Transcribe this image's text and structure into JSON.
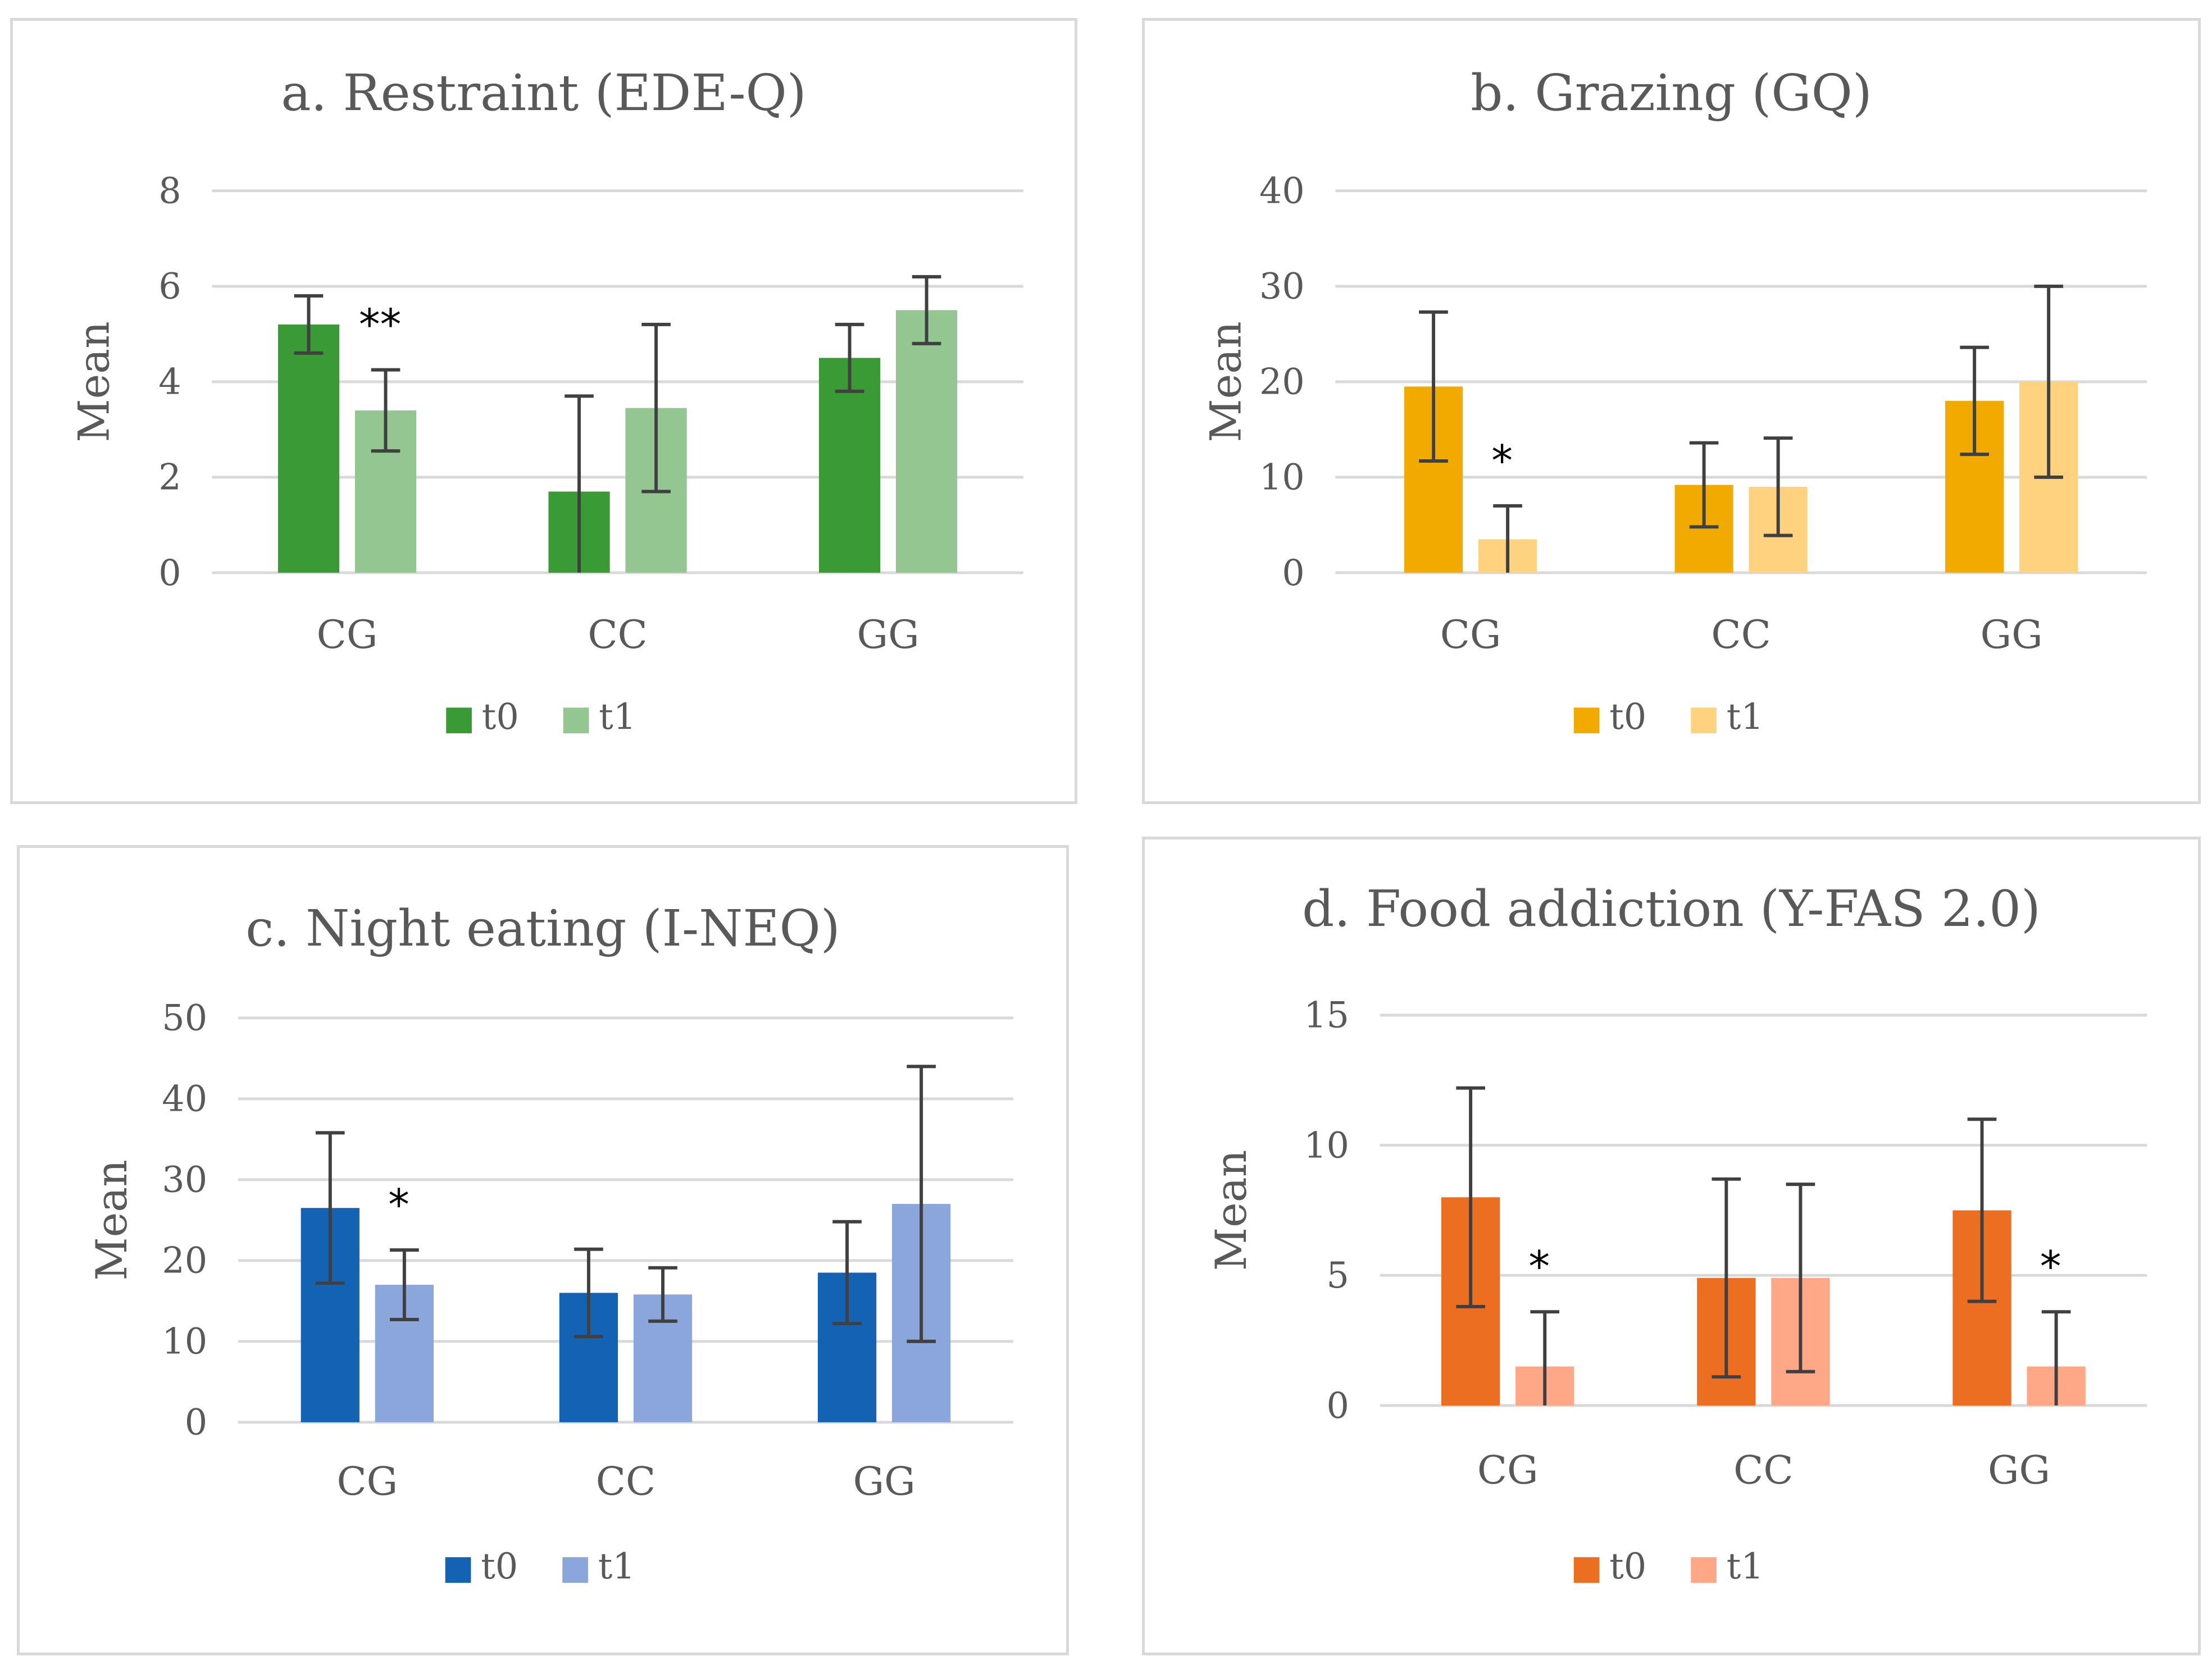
{
  "chart_data": [
    {
      "type": "bar",
      "title": "a. Restraint (EDE-Q)",
      "ylabel": "Mean",
      "xlabel": "",
      "ylim": [
        0,
        8
      ],
      "yticks": [
        0,
        2,
        4,
        6,
        8
      ],
      "grid": true,
      "legend_position": "bottom",
      "categories": [
        "CG",
        "CC",
        "GG"
      ],
      "series": [
        {
          "name": "t0",
          "color": "#3a9a35",
          "values": [
            5.2,
            1.7,
            4.5
          ],
          "error": [
            0.6,
            2.0,
            0.7
          ]
        },
        {
          "name": "t1",
          "color": "#93c690",
          "values": [
            3.4,
            3.45,
            5.5
          ],
          "error": [
            0.85,
            1.75,
            0.7
          ]
        }
      ],
      "annotations": [
        {
          "text": "**",
          "category": "CG"
        }
      ]
    },
    {
      "type": "bar",
      "title": "b. Grazing (GQ)",
      "ylabel": "Mean",
      "xlabel": "",
      "ylim": [
        0,
        40
      ],
      "yticks": [
        0,
        10,
        20,
        30,
        40
      ],
      "grid": true,
      "legend_position": "bottom",
      "categories": [
        "CG",
        "CC",
        "GG"
      ],
      "series": [
        {
          "name": "t0",
          "color": "#f0aa00",
          "values": [
            19.5,
            9.2,
            18.0
          ],
          "error": [
            7.8,
            4.4,
            5.6
          ]
        },
        {
          "name": "t1",
          "color": "#ffd280",
          "values": [
            3.5,
            9.0,
            20.0
          ],
          "error": [
            3.5,
            5.1,
            10.0
          ]
        }
      ],
      "annotations": [
        {
          "text": "*",
          "category": "CG"
        }
      ]
    },
    {
      "type": "bar",
      "title": "c. Night eating (I-NEQ)",
      "ylabel": "Mean",
      "xlabel": "",
      "ylim": [
        0,
        50
      ],
      "yticks": [
        0,
        10,
        20,
        30,
        40,
        50
      ],
      "grid": true,
      "legend_position": "bottom",
      "categories": [
        "CG",
        "CC",
        "GG"
      ],
      "series": [
        {
          "name": "t0",
          "color": "#1462b3",
          "values": [
            26.5,
            16.0,
            18.5
          ],
          "error": [
            9.3,
            5.4,
            6.3
          ]
        },
        {
          "name": "t1",
          "color": "#8ba6da",
          "values": [
            17.0,
            15.8,
            27.0
          ],
          "error": [
            4.3,
            3.3,
            17.0
          ]
        }
      ],
      "annotations": [
        {
          "text": "*",
          "category": "CG"
        }
      ]
    },
    {
      "type": "bar",
      "title": "d. Food addiction (Y-FAS 2.0)",
      "ylabel": "Mean",
      "xlabel": "",
      "ylim": [
        0,
        15
      ],
      "yticks": [
        0,
        5,
        10,
        15
      ],
      "grid": true,
      "legend_position": "bottom",
      "categories": [
        "CG",
        "CC",
        "GG"
      ],
      "series": [
        {
          "name": "t0",
          "color": "#eb6e21",
          "values": [
            8.0,
            4.9,
            7.5
          ],
          "error": [
            4.2,
            3.8,
            3.5
          ]
        },
        {
          "name": "t1",
          "color": "#ffa888",
          "values": [
            1.5,
            4.9,
            1.5
          ],
          "error": [
            2.1,
            3.6,
            2.1
          ]
        }
      ],
      "annotations": [
        {
          "text": "*",
          "category": "CG"
        },
        {
          "text": "*",
          "category": "GG"
        }
      ]
    }
  ]
}
